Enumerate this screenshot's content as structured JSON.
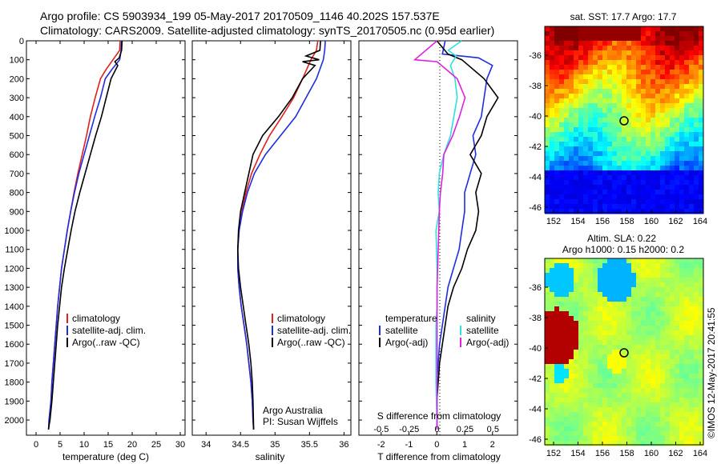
{
  "header": {
    "line1": "Argo profile: CS 5903934_199 05-May-2017 20170509_1146 40.202S 157.537E",
    "line2": "Climatology: CARS2009. Satellite-adjusted climatology: synTS_20170505.nc (0.95d earlier)"
  },
  "colors": {
    "climatology": "#e0201b",
    "satellite": "#1f2ee0",
    "argo": "#000000",
    "cyan": "#2fe0e0",
    "magenta": "#e020e0"
  },
  "depth_ticks": [
    "0",
    "100",
    "200",
    "300",
    "400",
    "500",
    "600",
    "700",
    "800",
    "900",
    "1000",
    "1100",
    "1200",
    "1300",
    "1400",
    "1500",
    "1600",
    "1700",
    "1800",
    "1900",
    "2000"
  ],
  "panels": {
    "temperature": {
      "xlabel": "temperature (deg C)",
      "xticks": [
        "0",
        "5",
        "10",
        "15",
        "20",
        "25",
        "30"
      ],
      "legend": [
        "climatology",
        "satellite-adj. clim.",
        "Argo(..raw -QC)"
      ]
    },
    "salinity": {
      "xlabel": "salinity",
      "xticks": [
        "34",
        "34.5",
        "35",
        "35.5",
        "36"
      ],
      "legend": [
        "climatology",
        "satellite-adj. clim.",
        "Argo(..raw -QC)"
      ],
      "note1": "Argo Australia",
      "note2": "PI: Susan Wijffels"
    },
    "difference": {
      "xlabel": "T difference from climatology",
      "toplabel": "S difference from climatology",
      "sticks": [
        "-0.5",
        "-0.25",
        "0",
        "0.25",
        "0.5"
      ],
      "tticks": [
        "-2",
        "-1",
        "0",
        "1",
        "2"
      ],
      "legend_left_title": "temperature",
      "legend_left": [
        "satellite",
        "Argo(-adj)"
      ],
      "legend_right_title": "salinity",
      "legend_right": [
        "satellite",
        "Argo(-adj)"
      ]
    },
    "map_sst": {
      "title": "sat. SST: 17.7  Argo: 17.7",
      "yticks": [
        "-36",
        "-38",
        "-40",
        "-42",
        "-44",
        "-46"
      ],
      "xticks": [
        "152",
        "154",
        "156",
        "158",
        "160",
        "162",
        "164"
      ]
    },
    "map_sla": {
      "title1": "Altim. SLA: 0.22",
      "title2": "Argo h1000: 0.15 h2000: 0.2",
      "yticks": [
        "-36",
        "-38",
        "-40",
        "-42",
        "-44",
        "-46"
      ],
      "xticks": [
        "152",
        "154",
        "156",
        "158",
        "160",
        "162",
        "164"
      ]
    },
    "side_note": "©IMOS 12-May-2017 20:41:55"
  },
  "chart_data": [
    {
      "type": "line",
      "title": "",
      "xlabel": "temperature (deg C)",
      "ylabel": "",
      "xlim": [
        -2,
        31
      ],
      "ylim": [
        2080,
        0
      ],
      "series": [
        {
          "name": "climatology",
          "color": "#e0201b",
          "x": [
            17.5,
            17.4,
            16.0,
            14.6,
            13.4,
            12.3,
            11.3,
            10.5,
            9.6,
            8.7,
            7.9,
            7.2,
            6.5,
            5.9,
            5.3,
            4.9,
            4.5,
            4.2,
            3.9,
            3.6,
            3.3,
            3.1,
            2.9,
            2.7,
            2.6
          ],
          "y": [
            0,
            50,
            100,
            150,
            200,
            300,
            400,
            500,
            600,
            700,
            800,
            900,
            1000,
            1100,
            1200,
            1300,
            1400,
            1500,
            1600,
            1700,
            1800,
            1900,
            1950,
            2000,
            2050
          ]
        },
        {
          "name": "satellite-adj. clim.",
          "color": "#1f2ee0",
          "x": [
            17.8,
            17.7,
            17.4,
            15.8,
            14.4,
            13.4,
            12.2,
            11.1,
            10.0,
            8.9,
            8.0,
            7.2,
            6.5,
            5.9,
            5.3,
            4.9,
            4.5,
            4.2,
            3.9,
            3.6,
            3.3,
            3.1,
            2.9,
            2.7,
            2.6
          ],
          "y": [
            0,
            50,
            100,
            150,
            200,
            300,
            400,
            500,
            600,
            700,
            800,
            900,
            1000,
            1100,
            1200,
            1300,
            1400,
            1500,
            1600,
            1700,
            1800,
            1900,
            1950,
            2000,
            2050
          ]
        },
        {
          "name": "Argo(..raw -QC)",
          "color": "#000000",
          "x": [
            17.9,
            17.8,
            17.3,
            16.4,
            17.0,
            15.6,
            14.6,
            13.6,
            12.4,
            11.3,
            10.2,
            9.1,
            8.1,
            7.3,
            6.6,
            5.9,
            5.3,
            4.9,
            4.5,
            4.2,
            3.9,
            3.6,
            3.3,
            3.1,
            2.9,
            2.7,
            2.6
          ],
          "y": [
            0,
            50,
            90,
            110,
            130,
            200,
            300,
            400,
            500,
            600,
            700,
            800,
            900,
            1000,
            1100,
            1200,
            1300,
            1400,
            1500,
            1600,
            1700,
            1800,
            1900,
            1950,
            2000,
            2030,
            2050
          ]
        }
      ]
    },
    {
      "type": "line",
      "title": "",
      "xlabel": "salinity",
      "ylabel": "",
      "xlim": [
        33.8,
        36.1
      ],
      "ylim": [
        2080,
        0
      ],
      "series": [
        {
          "name": "climatology",
          "color": "#e0201b",
          "x": [
            35.62,
            35.6,
            35.52,
            35.4,
            35.27,
            35.1,
            34.92,
            34.78,
            34.66,
            34.58,
            34.52,
            34.48,
            34.46,
            34.46,
            34.48,
            34.51,
            34.55,
            34.59,
            34.62,
            34.65,
            34.67,
            34.68,
            34.69
          ],
          "y": [
            0,
            50,
            100,
            200,
            300,
            400,
            500,
            600,
            700,
            800,
            900,
            1000,
            1100,
            1200,
            1300,
            1400,
            1500,
            1600,
            1700,
            1800,
            1900,
            2000,
            2050
          ]
        },
        {
          "name": "satellite-adj. clim.",
          "color": "#1f2ee0",
          "x": [
            35.73,
            35.72,
            35.7,
            35.6,
            35.45,
            35.3,
            35.08,
            34.86,
            34.7,
            34.6,
            34.53,
            34.48,
            34.46,
            34.46,
            34.48,
            34.51,
            34.55,
            34.59,
            34.62,
            34.65,
            34.67,
            34.68,
            34.69
          ],
          "y": [
            0,
            50,
            100,
            200,
            300,
            400,
            500,
            600,
            700,
            800,
            900,
            1000,
            1100,
            1200,
            1300,
            1400,
            1500,
            1600,
            1700,
            1800,
            1900,
            2000,
            2050
          ]
        },
        {
          "name": "Argo(..raw -QC)",
          "color": "#000000",
          "x": [
            35.66,
            35.65,
            35.45,
            35.64,
            35.4,
            35.58,
            35.4,
            35.25,
            35.05,
            34.82,
            34.68,
            34.62,
            34.56,
            34.5,
            34.47,
            34.46,
            34.47,
            34.5,
            34.54,
            34.58,
            34.62,
            34.65,
            34.67,
            34.68,
            34.69
          ],
          "y": [
            0,
            50,
            80,
            100,
            110,
            130,
            200,
            300,
            400,
            500,
            600,
            700,
            800,
            900,
            1000,
            1100,
            1200,
            1300,
            1400,
            1500,
            1600,
            1700,
            1800,
            1900,
            2050
          ]
        }
      ]
    },
    {
      "type": "line",
      "title": "",
      "xlabel": "T difference from climatology",
      "ylabel": "",
      "xlim": [
        -2.8,
        2.9
      ],
      "ylim": [
        2080,
        0
      ],
      "series": [
        {
          "name": "satellite",
          "color": "#1f2ee0",
          "x": [
            0.3,
            0.2,
            1.5,
            2.0,
            1.8,
            1.7,
            1.6,
            1.3,
            1.4,
            1.2,
            1.0,
            1.0,
            0.9,
            0.8,
            0.6,
            0.4,
            0.3,
            0.2,
            0.1,
            0.05,
            0.0,
            0.0
          ],
          "y": [
            0,
            70,
            90,
            130,
            200,
            300,
            400,
            500,
            600,
            700,
            800,
            900,
            1000,
            1100,
            1200,
            1300,
            1400,
            1500,
            1600,
            1700,
            1800,
            2050
          ]
        },
        {
          "name": "Argo(-adj)",
          "color": "#000000",
          "x": [
            0.0,
            0.4,
            0.9,
            1.7,
            2.1,
            2.2,
            1.8,
            1.6,
            1.2,
            1.6,
            1.4,
            1.5,
            1.4,
            1.1,
            0.9,
            0.6,
            0.4,
            0.3,
            0.2,
            0.1,
            0.05,
            0.0,
            0.0
          ],
          "y": [
            0,
            70,
            100,
            200,
            280,
            300,
            400,
            500,
            600,
            700,
            800,
            900,
            1000,
            1100,
            1200,
            1300,
            1400,
            1500,
            1600,
            1700,
            1800,
            1900,
            2050
          ]
        }
      ]
    },
    {
      "type": "line",
      "title": "",
      "xlabel": "S difference from climatology",
      "ylabel": "",
      "xlim": [
        -0.7,
        0.72
      ],
      "ylim": [
        2080,
        0
      ],
      "series": [
        {
          "name": "satellite",
          "color": "#2fe0e0",
          "x": [
            0.22,
            0.1,
            0.17,
            0.12,
            0.16,
            0.18,
            0.15,
            0.12,
            0.06,
            0.02,
            0.01,
            0.02,
            -0.01,
            0.0,
            0.0,
            -0.01,
            -0.01,
            -0.01,
            -0.01,
            0.0
          ],
          "y": [
            0,
            50,
            80,
            130,
            200,
            300,
            400,
            500,
            600,
            700,
            800,
            900,
            1000,
            1200,
            1400,
            1500,
            1600,
            1700,
            1800,
            2050
          ]
        },
        {
          "name": "Argo(-adj)",
          "color": "#e020e0",
          "x": [
            0.0,
            -0.2,
            0.0,
            0.18,
            0.25,
            0.2,
            0.14,
            0.06,
            0.05,
            0.03,
            0.02,
            0.01,
            0.0,
            0.0,
            0.0,
            0.0
          ],
          "y": [
            0,
            100,
            110,
            200,
            300,
            400,
            500,
            600,
            700,
            800,
            900,
            1100,
            1300,
            1500,
            1700,
            2050
          ]
        }
      ]
    }
  ]
}
